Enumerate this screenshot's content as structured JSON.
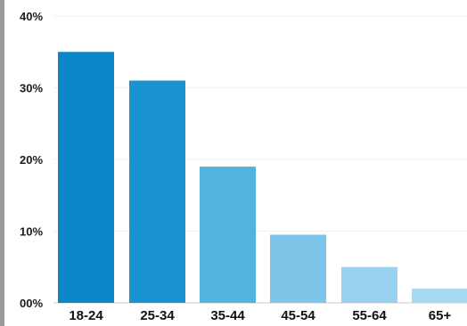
{
  "chart_data": {
    "type": "bar",
    "title": "",
    "xlabel": "",
    "ylabel": "",
    "categories": [
      "18-24",
      "25-34",
      "35-44",
      "45-54",
      "55-64",
      "65+"
    ],
    "values": [
      35,
      31,
      19,
      9.5,
      5,
      2
    ],
    "colors": [
      "#0b86c8",
      "#1a94d1",
      "#53b2e0",
      "#7ec5ea",
      "#98d1ef",
      "#a8d9f2"
    ],
    "ylim": [
      0,
      40
    ],
    "yticks": [
      0,
      10,
      20,
      30,
      40
    ],
    "ytick_labels": [
      "00%",
      "10%",
      "20%",
      "30%",
      "40%"
    ],
    "grid": true,
    "legend": "none"
  }
}
